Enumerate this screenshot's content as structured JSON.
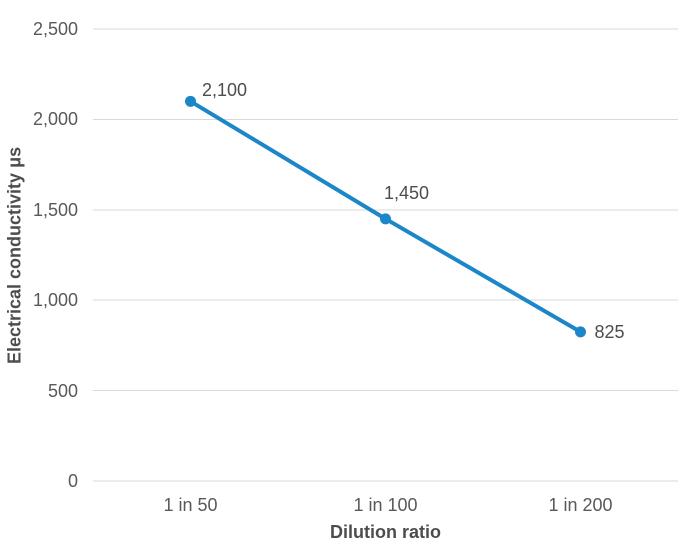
{
  "chart_data": {
    "type": "line",
    "title": "",
    "categories": [
      "1 in 50",
      "1 in 100",
      "1 in 200"
    ],
    "values": [
      2100,
      1450,
      825
    ],
    "point_labels": [
      "2,100",
      "1,450",
      "825"
    ],
    "label_placements": [
      "above-right",
      "above",
      "right"
    ],
    "xlabel": "Dilution ratio",
    "ylabel": "Electrical conductivity μs",
    "ylim": [
      0,
      2500
    ],
    "ytick_interval": 500,
    "ytick_labels": [
      "0",
      "500",
      "1,000",
      "1,500",
      "2,000",
      "2,500"
    ],
    "grid": "horizontal-only",
    "legend": "none",
    "line_color": "#1b87c9",
    "marker": "circle",
    "gridline_color": "#d9d9d9",
    "tick_label_color": "#595959",
    "axis_title_color": "#4d4d4d",
    "data_label_color": "#4d4d4d"
  }
}
